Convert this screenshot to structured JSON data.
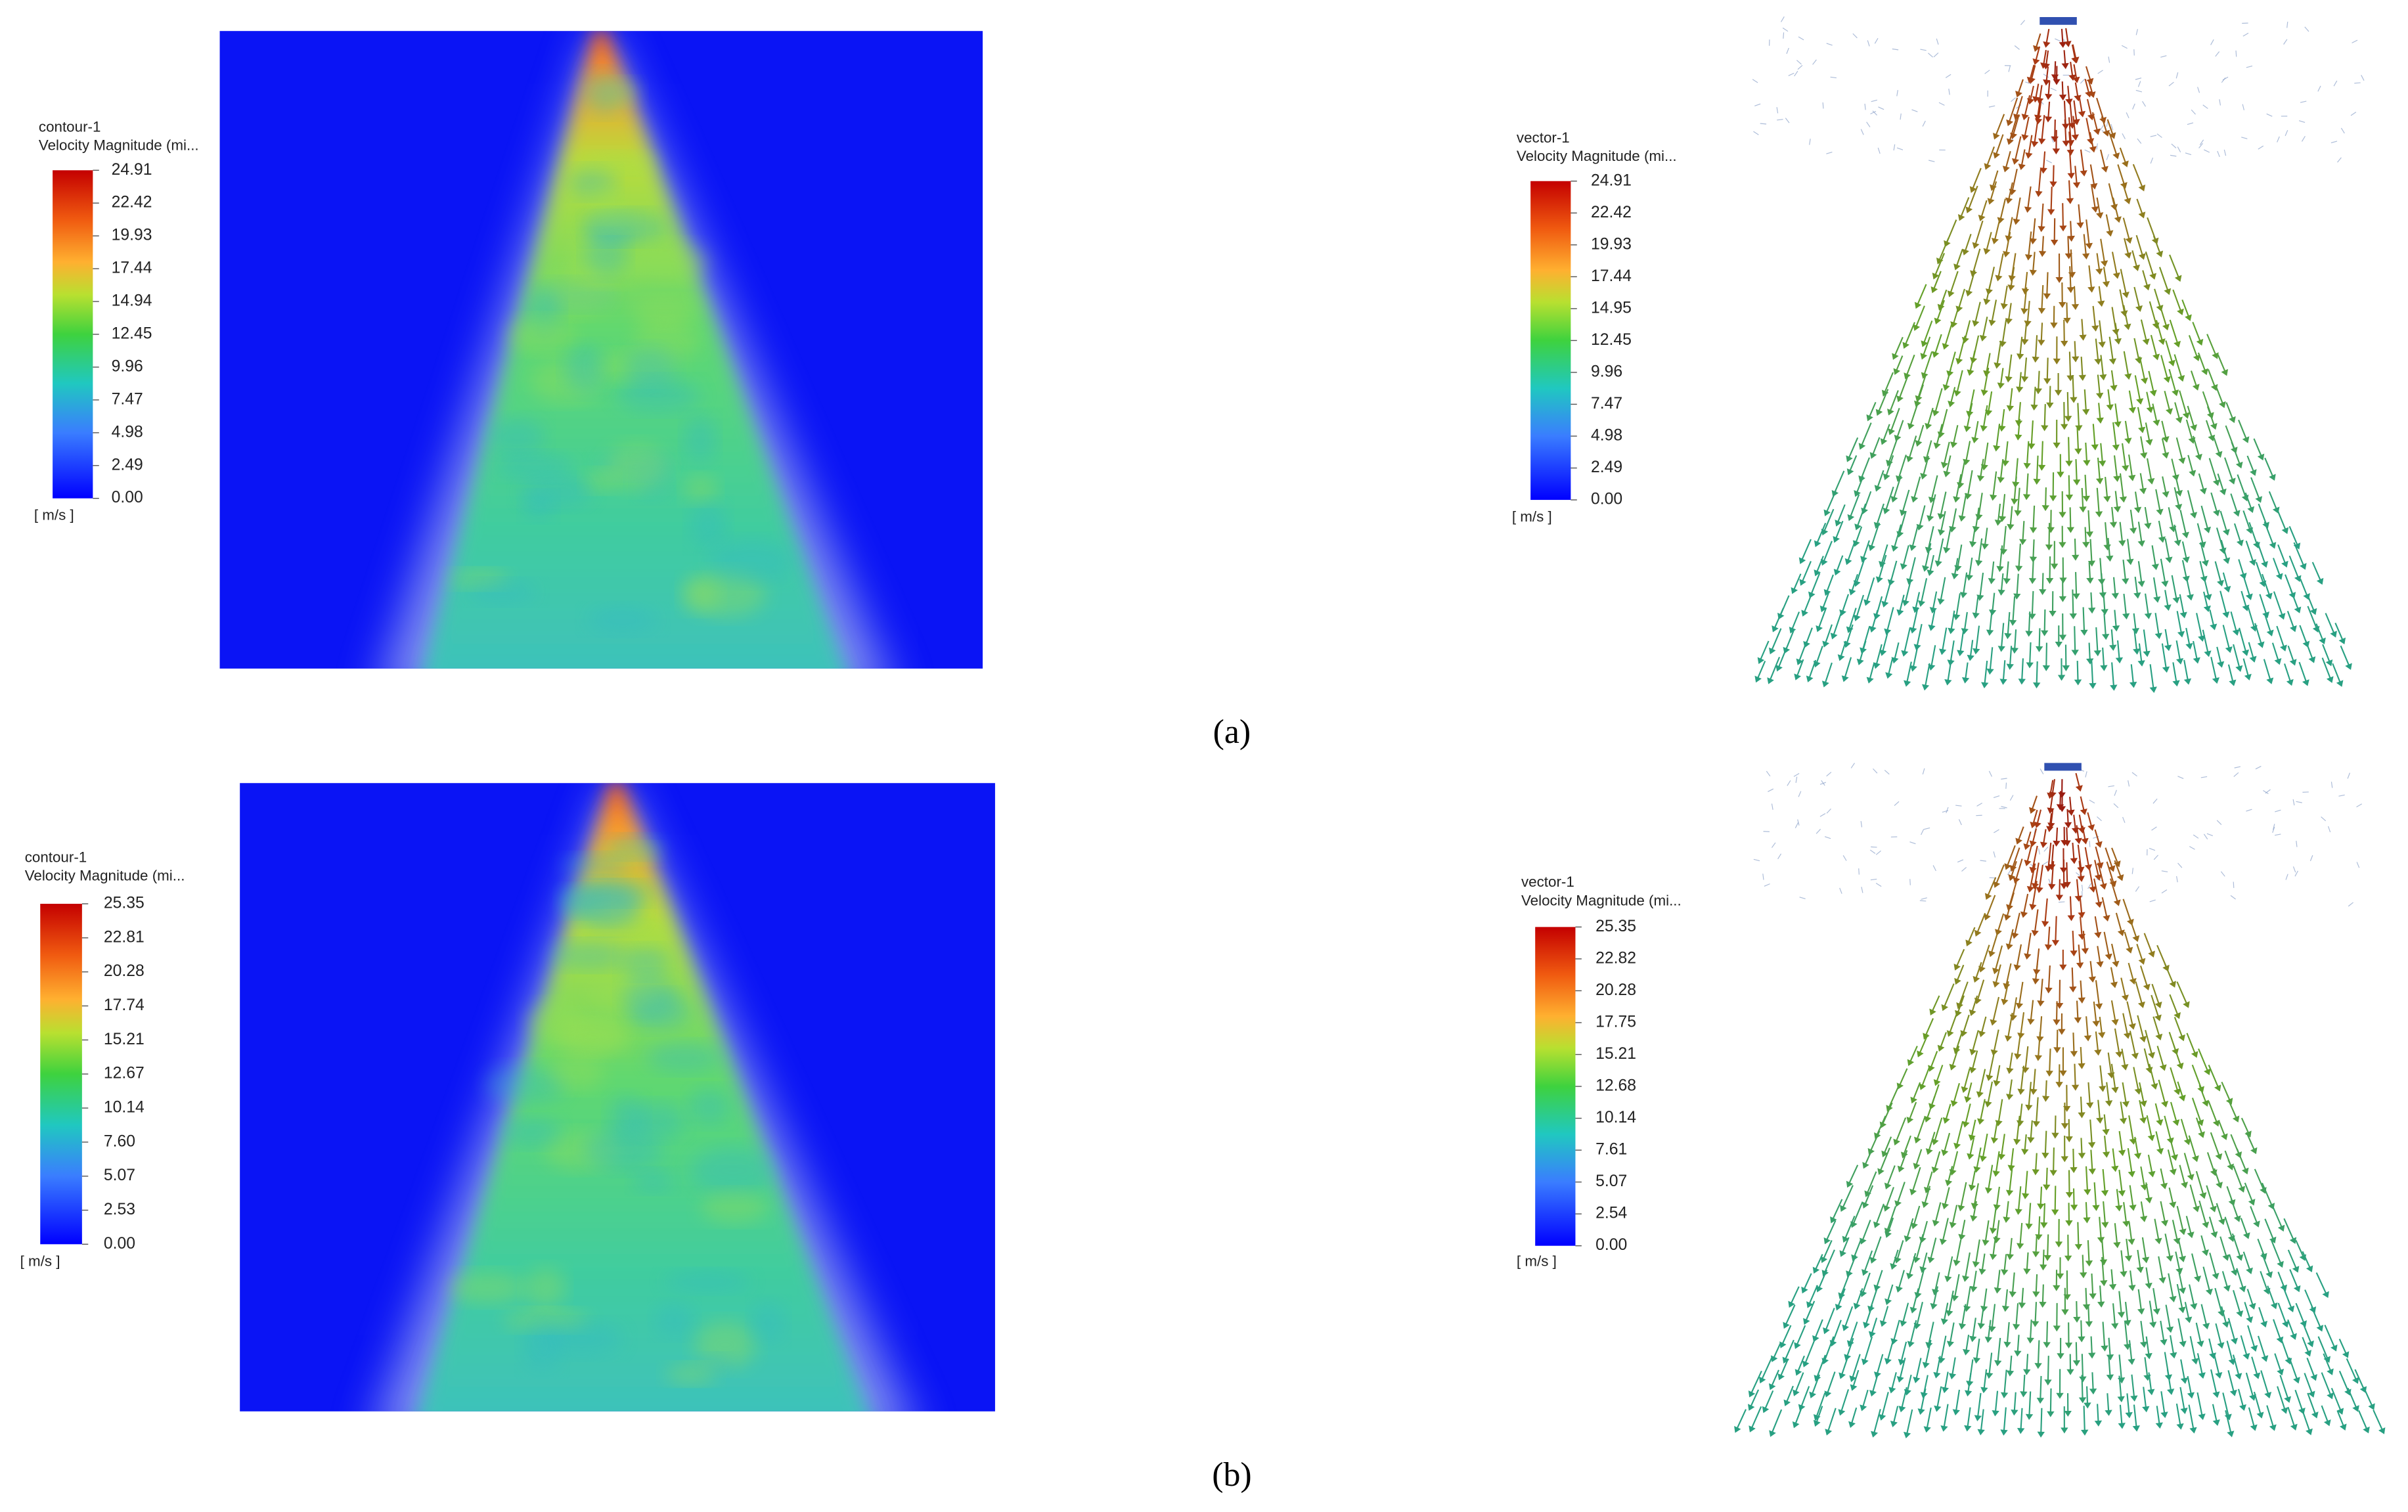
{
  "panels": [
    {
      "label": "(a)",
      "plots": [
        {
          "name": "contour-1",
          "quantity": "Velocity Magnitude (mi...",
          "ticks": [
            "24.91",
            "22.42",
            "19.93",
            "17.44",
            "14.94",
            "12.45",
            "9.96",
            "7.47",
            "4.98",
            "2.49",
            "0.00"
          ],
          "unit": "[ m/s ]"
        },
        {
          "name": "vector-1",
          "quantity": "Velocity Magnitude (mi...",
          "ticks": [
            "24.91",
            "22.42",
            "19.93",
            "17.44",
            "14.95",
            "12.45",
            "9.96",
            "7.47",
            "4.98",
            "2.49",
            "0.00"
          ],
          "unit": "[ m/s ]"
        }
      ]
    },
    {
      "label": "(b)",
      "plots": [
        {
          "name": "contour-1",
          "quantity": "Velocity Magnitude (mi...",
          "ticks": [
            "25.35",
            "22.81",
            "20.28",
            "17.74",
            "15.21",
            "12.67",
            "10.14",
            "7.60",
            "5.07",
            "2.53",
            "0.00"
          ],
          "unit": "[ m/s ]"
        },
        {
          "name": "vector-1",
          "quantity": "Velocity Magnitude (mi...",
          "ticks": [
            "25.35",
            "22.82",
            "20.28",
            "17.75",
            "15.21",
            "12.68",
            "10.14",
            "7.61",
            "5.07",
            "2.54",
            "0.00"
          ],
          "unit": "[ m/s ]"
        }
      ]
    }
  ]
}
